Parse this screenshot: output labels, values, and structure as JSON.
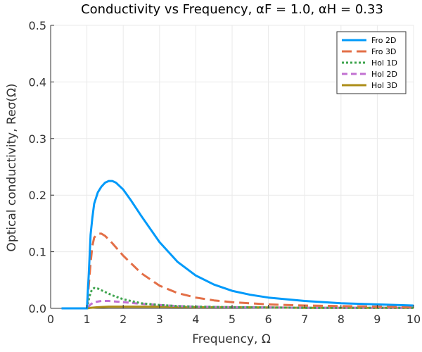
{
  "chart_data": {
    "type": "line",
    "title": "Conductivity vs Frequency, αF = 1.0, αH = 0.33",
    "xlabel": "Frequency, Ω",
    "ylabel": "Optical conductivity, Reσ(Ω)",
    "xlim": [
      0,
      10
    ],
    "ylim": [
      0,
      0.5
    ],
    "xticks": [
      "0",
      "1",
      "2",
      "3",
      "4",
      "5",
      "6",
      "7",
      "8",
      "9",
      "10"
    ],
    "yticks": [
      "0.0",
      "0.1",
      "0.2",
      "0.3",
      "0.4",
      "0.5"
    ],
    "grid": true,
    "legend_position": "top-right",
    "series": [
      {
        "name": "Fro 2D",
        "color": "#009AFA",
        "dash": "solid",
        "x": [
          0.3,
          1.0,
          1.05,
          1.1,
          1.15,
          1.2,
          1.3,
          1.4,
          1.5,
          1.6,
          1.7,
          1.8,
          2.0,
          2.2,
          2.5,
          3.0,
          3.5,
          4.0,
          4.5,
          5.0,
          5.5,
          6.0,
          7.0,
          8.0,
          9.0,
          10.0
        ],
        "y": [
          0.0,
          0.0,
          0.06,
          0.13,
          0.16,
          0.185,
          0.205,
          0.215,
          0.222,
          0.225,
          0.225,
          0.222,
          0.21,
          0.192,
          0.163,
          0.117,
          0.082,
          0.058,
          0.042,
          0.031,
          0.024,
          0.019,
          0.013,
          0.009,
          0.007,
          0.005
        ]
      },
      {
        "name": "Fro 3D",
        "color": "#E36F47",
        "dash": "long-dash",
        "x": [
          0.3,
          1.0,
          1.05,
          1.1,
          1.15,
          1.2,
          1.3,
          1.4,
          1.5,
          1.7,
          2.0,
          2.5,
          3.0,
          3.5,
          4.0,
          4.5,
          5.0,
          6.0,
          7.0,
          8.0,
          9.0,
          10.0
        ],
        "y": [
          0.0,
          0.0,
          0.04,
          0.08,
          0.11,
          0.125,
          0.132,
          0.132,
          0.128,
          0.115,
          0.093,
          0.062,
          0.04,
          0.027,
          0.019,
          0.014,
          0.011,
          0.007,
          0.005,
          0.004,
          0.003,
          0.002
        ]
      },
      {
        "name": "Hol 1D",
        "color": "#3EA44E",
        "dash": "dotted",
        "x": [
          0.3,
          1.0,
          1.05,
          1.1,
          1.15,
          1.2,
          1.3,
          1.4,
          1.5,
          1.7,
          2.0,
          2.5,
          3.0,
          3.5,
          4.0,
          5.0,
          6.0,
          7.0,
          8.0,
          9.0,
          10.0
        ],
        "y": [
          0.0,
          0.0,
          0.015,
          0.028,
          0.034,
          0.036,
          0.035,
          0.032,
          0.029,
          0.023,
          0.016,
          0.009,
          0.006,
          0.004,
          0.003,
          0.002,
          0.0015,
          0.001,
          0.001,
          0.001,
          0.001
        ]
      },
      {
        "name": "Hol 2D",
        "color": "#C271D2",
        "dash": "dashed",
        "x": [
          0.3,
          1.0,
          1.1,
          1.2,
          1.4,
          1.6,
          1.8,
          2.0,
          2.5,
          3.0,
          3.5,
          4.0,
          5.0,
          6.0,
          7.0,
          8.0,
          9.0,
          10.0
        ],
        "y": [
          0.0,
          0.0,
          0.007,
          0.011,
          0.013,
          0.013,
          0.012,
          0.011,
          0.008,
          0.006,
          0.004,
          0.003,
          0.002,
          0.0015,
          0.001,
          0.001,
          0.001,
          0.001
        ]
      },
      {
        "name": "Hol 3D",
        "color": "#AC8D18",
        "dash": "solid",
        "x": [
          0.3,
          1.0,
          1.1,
          1.3,
          1.6,
          2.0,
          2.5,
          3.0,
          4.0,
          5.0,
          6.0,
          7.0,
          8.0,
          9.0,
          10.0
        ],
        "y": [
          0.0,
          0.0,
          0.001,
          0.002,
          0.003,
          0.003,
          0.003,
          0.003,
          0.002,
          0.002,
          0.0015,
          0.001,
          0.001,
          0.001,
          0.001
        ]
      }
    ]
  }
}
